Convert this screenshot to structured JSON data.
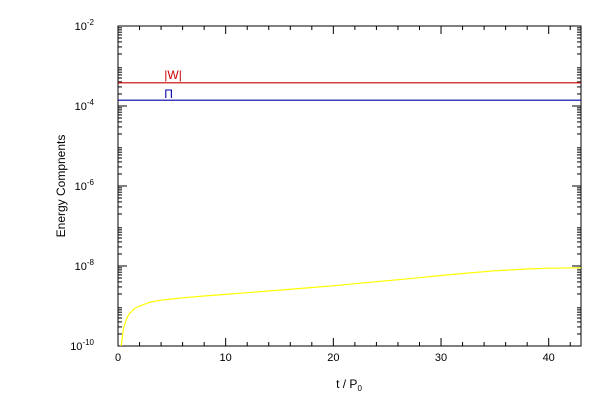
{
  "chart_data": {
    "type": "line",
    "xlabel": "t / P",
    "xlabel_sub": "0",
    "ylabel": "Energy Compnents",
    "xlim": [
      0,
      43
    ],
    "ylim": [
      1e-10,
      0.01
    ],
    "yscale": "log",
    "grid": false,
    "xticks": [
      {
        "value": 0,
        "label": "0"
      },
      {
        "value": 10,
        "label": "10"
      },
      {
        "value": 20,
        "label": "20"
      },
      {
        "value": 30,
        "label": "30"
      },
      {
        "value": 40,
        "label": "40"
      }
    ],
    "yticks": [
      {
        "value": 1e-10,
        "base": "10",
        "exp": "-10"
      },
      {
        "value": 1e-08,
        "base": "10",
        "exp": "-8"
      },
      {
        "value": 1e-06,
        "base": "10",
        "exp": "-6"
      },
      {
        "value": 0.0001,
        "base": "10",
        "exp": "-4"
      },
      {
        "value": 0.01,
        "base": "10",
        "exp": "-2"
      }
    ],
    "series": [
      {
        "name": "|W|",
        "color": "#cc0000",
        "label_at": {
          "x": 4.3,
          "y": 0.00048
        },
        "x": [
          0,
          43
        ],
        "y": [
          0.00038,
          0.00038
        ]
      },
      {
        "name": "Π",
        "color": "#0000aa",
        "label_at": {
          "x": 4.3,
          "y": 0.00016
        },
        "x": [
          0,
          43
        ],
        "y": [
          0.00014,
          0.00014
        ]
      },
      {
        "color": "#ffff00",
        "x": [
          0.3,
          0.5,
          0.8,
          1,
          1.5,
          2,
          3,
          4,
          5,
          6,
          8,
          10,
          12,
          15,
          18,
          20,
          22,
          25,
          28,
          30,
          32,
          35,
          38,
          40,
          43
        ],
        "y": [
          1e-10,
          2.7e-10,
          4.8e-10,
          6.2e-10,
          8.5e-10,
          1e-09,
          1.25e-09,
          1.4e-09,
          1.5e-09,
          1.6e-09,
          1.78e-09,
          1.95e-09,
          2.15e-09,
          2.5e-09,
          2.9e-09,
          3.2e-09,
          3.6e-09,
          4.3e-09,
          5.1e-09,
          5.8e-09,
          6.5e-09,
          7.6e-09,
          8.4e-09,
          8.8e-09,
          9e-09
        ]
      }
    ]
  }
}
